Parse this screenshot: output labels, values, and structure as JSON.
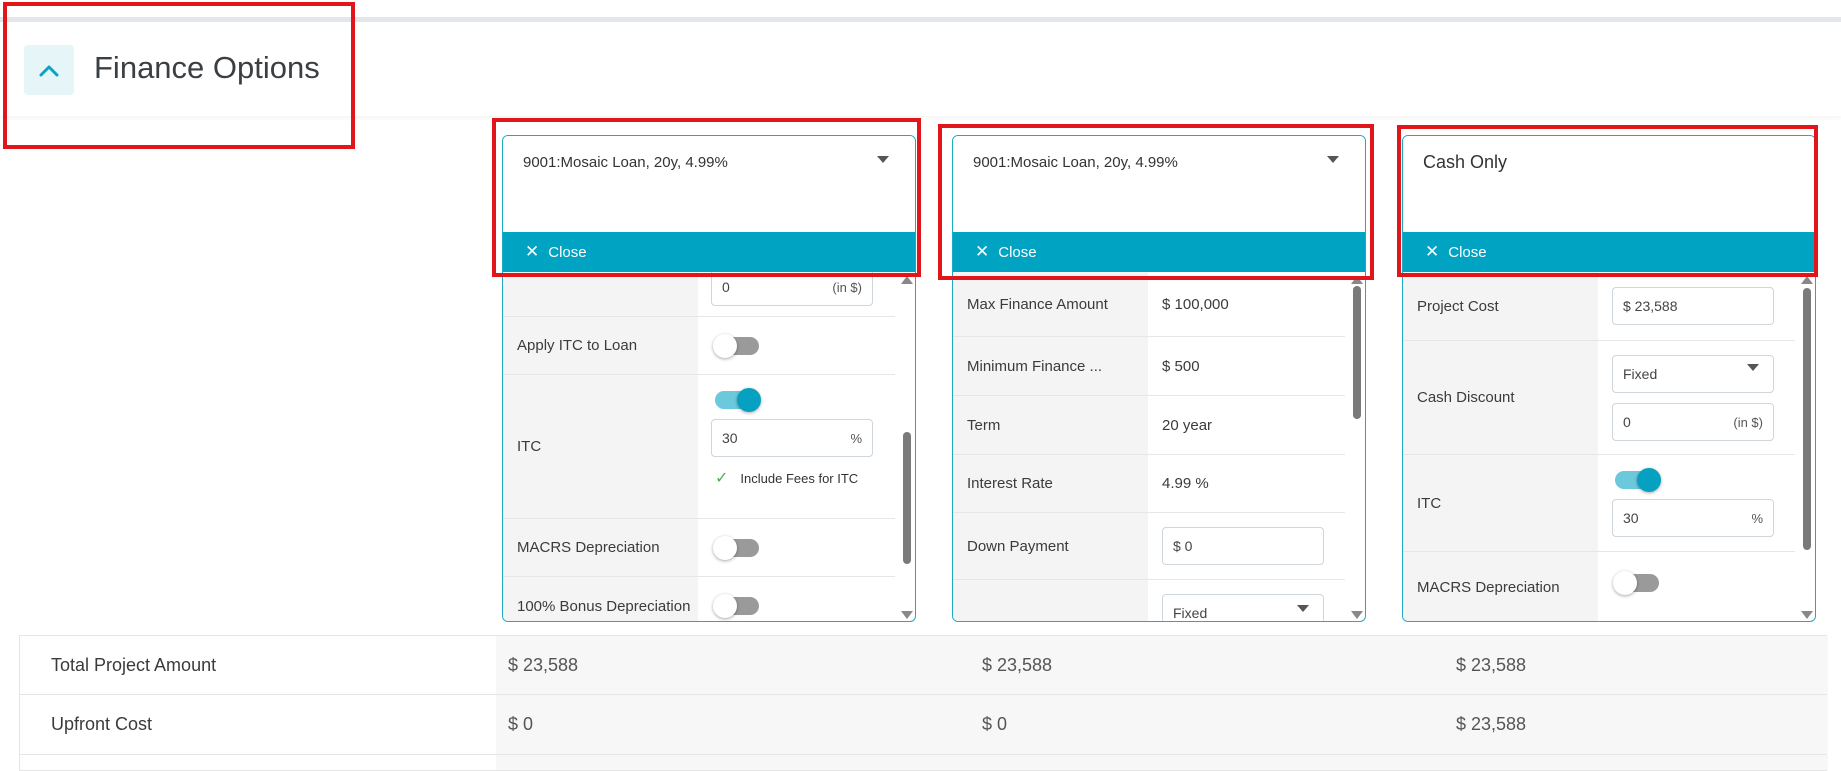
{
  "section": {
    "title": "Finance Options",
    "collapse_icon": "chevron-up-icon"
  },
  "cards": [
    {
      "selected_option": "9001:Mosaic Loan, 20y, 4.99%",
      "close_label": "Close",
      "rows": {
        "top_input_value": "0",
        "top_input_suffix": "(in $)",
        "apply_itc_label": "Apply ITC to Loan",
        "apply_itc_on": false,
        "itc_label": "ITC",
        "itc_on": true,
        "itc_value": "30",
        "itc_suffix": "%",
        "include_fees_label": "Include Fees for ITC",
        "macrs_label": "MACRS Depreciation",
        "macrs_on": false,
        "bonus_label": "100% Bonus Depreciation",
        "bonus_on": false
      }
    },
    {
      "selected_option": "9001:Mosaic Loan, 20y, 4.99%",
      "close_label": "Close",
      "rows": {
        "max_finance_label": "Max Finance Amount",
        "max_finance_value": "$ 100,000",
        "min_finance_label": "Minimum Finance ...",
        "min_finance_value": "$ 500",
        "term_label": "Term",
        "term_value": "20 year",
        "interest_label": "Interest Rate",
        "interest_value": "4.99 %",
        "down_payment_label": "Down Payment",
        "down_payment_value": "$ 0",
        "type_select_value": "Fixed"
      }
    },
    {
      "selected_option": "Cash Only",
      "close_label": "Close",
      "rows": {
        "project_cost_label": "Project Cost",
        "project_cost_value": "$ 23,588",
        "cash_discount_label": "Cash Discount",
        "cash_discount_type": "Fixed",
        "cash_discount_value": "0",
        "cash_discount_suffix": "(in $)",
        "itc_label": "ITC",
        "itc_on": true,
        "itc_value": "30",
        "itc_suffix": "%",
        "macrs_label": "MACRS Depreciation",
        "macrs_on": false
      }
    }
  ],
  "summary": [
    {
      "label": "Total Project Amount",
      "values": [
        "$ 23,588",
        "$ 23,588",
        "$ 23,588"
      ]
    },
    {
      "label": "Upfront Cost",
      "values": [
        "$ 0",
        "$ 0",
        "$ 23,588"
      ]
    }
  ],
  "colors": {
    "accent": "#01a3c2",
    "highlight": "#e0161b",
    "border": "#1ea9c4"
  }
}
